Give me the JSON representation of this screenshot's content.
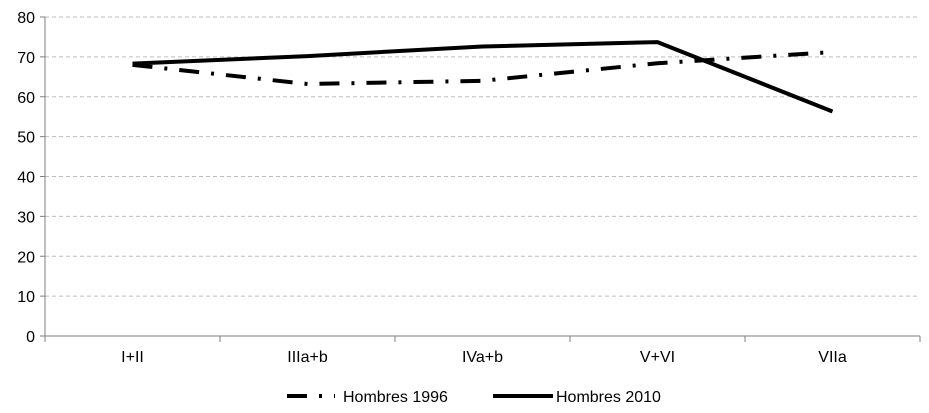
{
  "chart_data": {
    "type": "line",
    "categories": [
      "I+II",
      "IIIa+b",
      "IVa+b",
      "V+VI",
      "VIIa"
    ],
    "series": [
      {
        "name": "Hombres 1996",
        "values": [
          68,
          63.2,
          64,
          68.4,
          71.2
        ],
        "line_style": "dash-dot"
      },
      {
        "name": "Hombres 2010",
        "values": [
          68.3,
          70.2,
          72.6,
          73.7,
          56.3
        ],
        "line_style": "solid"
      }
    ],
    "ylim": [
      0,
      80
    ],
    "yticks": [
      0,
      10,
      20,
      30,
      40,
      50,
      60,
      70,
      80
    ],
    "grid": true,
    "legend_position": "bottom",
    "colors": {
      "series_line": "#000000",
      "grid": "#bdbdbd",
      "axis": "#7f7f7f"
    }
  }
}
